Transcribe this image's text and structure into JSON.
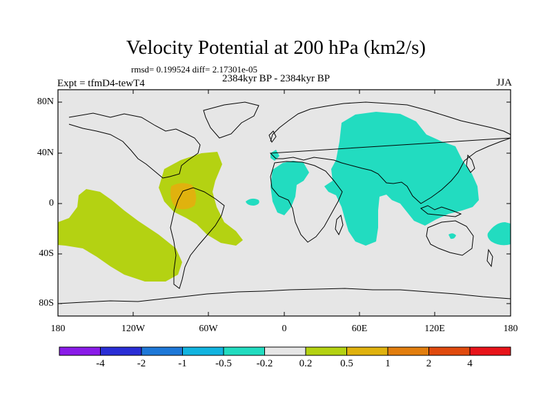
{
  "title": "Velocity Potential at 200 hPa (km2/s)",
  "stats": "rmsd= 0.199524 diff= 2.17301e-05",
  "experiment": "Expt = tfmD4-tewT4",
  "period": "2384kyr BP - 2384kyr BP",
  "season": "JJA",
  "axes": {
    "y_labels": [
      "80N",
      "40N",
      "0",
      "40S",
      "80S"
    ],
    "x_labels": [
      "180",
      "120W",
      "60W",
      "0",
      "60E",
      "120E",
      "180"
    ]
  },
  "colorbar": {
    "labels": [
      "-4",
      "-2",
      "-1",
      "-0.5",
      "-0.2",
      "0.2",
      "0.5",
      "1",
      "2",
      "4"
    ],
    "colors": [
      "#8a1be8",
      "#2a2ed6",
      "#1e78d8",
      "#12b4e0",
      "#22dcc0",
      "#e6e6e6",
      "#b4d212",
      "#e0b20e",
      "#e27e0e",
      "#e04a0e",
      "#e8141a"
    ]
  },
  "map_colors": {
    "background": "#e6e6e6",
    "negative_region": "#22dcc0",
    "positive_region": "#b4d212",
    "strong_positive": "#e0b20e"
  }
}
